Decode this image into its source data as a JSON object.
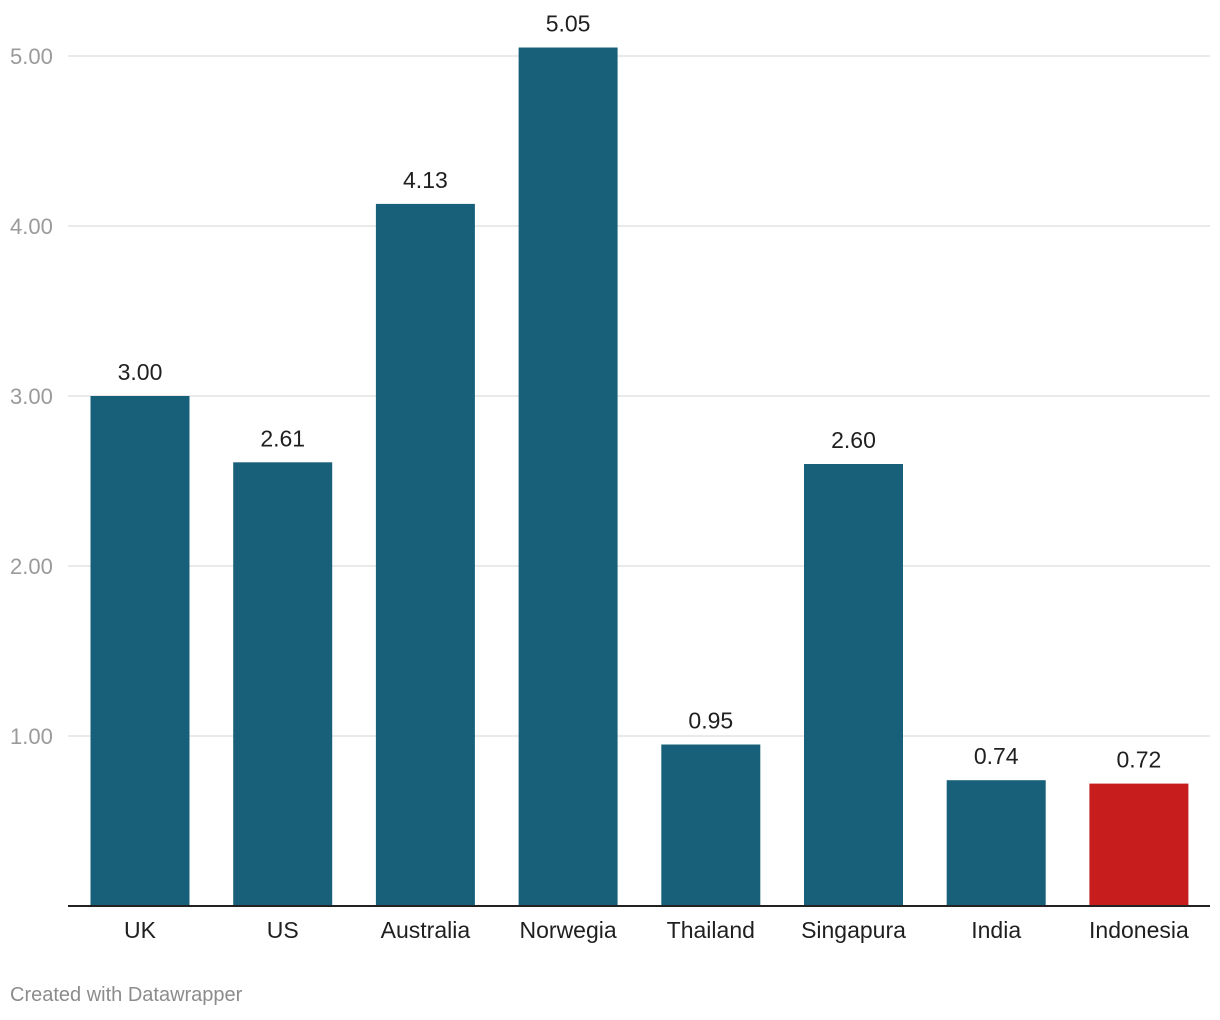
{
  "chart_data": {
    "type": "bar",
    "categories": [
      "UK",
      "US",
      "Australia",
      "Norwegia",
      "Thailand",
      "Singapura",
      "India",
      "Indonesia"
    ],
    "values": [
      3.0,
      2.61,
      4.13,
      5.05,
      0.95,
      2.6,
      0.74,
      0.72
    ],
    "value_labels": [
      "3.00",
      "2.61",
      "4.13",
      "5.05",
      "0.95",
      "2.60",
      "0.74",
      "0.72"
    ],
    "title": "",
    "xlabel": "",
    "ylabel": "",
    "ylim": [
      0,
      5.3
    ],
    "y_ticks": [
      1,
      2,
      3,
      4,
      5
    ],
    "y_tick_labels": [
      "1.00",
      "2.00",
      "3.00",
      "4.00",
      "5.00"
    ],
    "grid": true,
    "legend": "none",
    "colors": {
      "default": "#18607a",
      "highlight": "#c71e1d",
      "highlight_category": "Indonesia"
    }
  },
  "footer": {
    "credit": "Created with Datawrapper"
  }
}
